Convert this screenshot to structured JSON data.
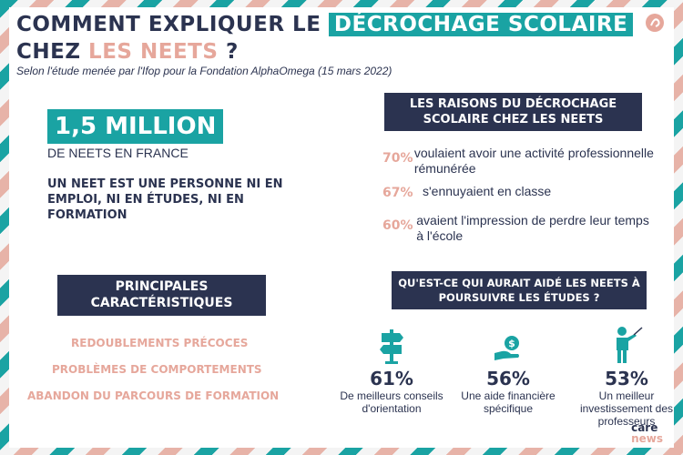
{
  "title": {
    "line1_prefix": "COMMENT EXPLIQUER LE",
    "line1_highlight": "DÉCROCHAGE SCOLAIRE",
    "line2_prefix": "CHEZ",
    "line2_highlight": "LES NEETS",
    "line2_suffix": "?"
  },
  "subtitle": "Selon l'étude menée par l'Ifop pour la Fondation AlphaOmega (15 mars 2022)",
  "stats": {
    "headline": "1,5 MILLION",
    "headline_sub": "DE NEETS EN FRANCE",
    "definition": "UN NEET EST UNE PERSONNE NI EN EMPLOI, NI EN ÉTUDES, NI EN FORMATION"
  },
  "reasons": {
    "heading": "LES RAISONS DU DÉCROCHAGE SCOLAIRE CHEZ LES NEETS",
    "items": [
      {
        "pct": "70%",
        "text": "voulaient avoir une activité professionnelle rémunérée"
      },
      {
        "pct": "67%",
        "text": "s'ennuyaient en classe"
      },
      {
        "pct": "60%",
        "text": "avaient l'impression de perdre leur temps à l'école"
      }
    ]
  },
  "characteristics": {
    "heading": "PRINCIPALES CARACTÉRISTIQUES",
    "items": [
      "REDOUBLEMENTS PRÉCOCES",
      "PROBLÈMES DE COMPORTEMENTS",
      "ABANDON DU PARCOURS DE FORMATION"
    ]
  },
  "help": {
    "heading": "QU'EST-CE QUI AURAIT AIDÉ LES NEETS À POURSUIVRE LES ÉTUDES ?",
    "items": [
      {
        "icon": "signpost-icon",
        "pct": "61%",
        "label": "De meilleurs conseils d'orientation"
      },
      {
        "icon": "money-hand-icon",
        "pct": "56%",
        "label": "Une aide financière spécifique"
      },
      {
        "icon": "teacher-icon",
        "pct": "53%",
        "label": "Un meilleur investissement des professeurs"
      }
    ]
  },
  "brand": {
    "line1": "care",
    "line2": "news"
  },
  "colors": {
    "navy": "#2b3350",
    "teal": "#1aa3a3",
    "pink": "#e6a79b"
  }
}
